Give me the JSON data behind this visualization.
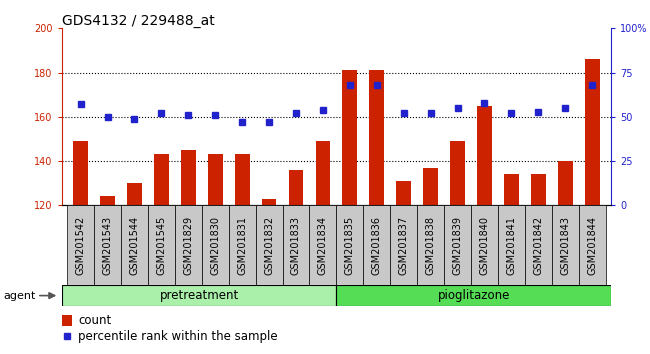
{
  "title": "GDS4132 / 229488_at",
  "samples": [
    "GSM201542",
    "GSM201543",
    "GSM201544",
    "GSM201545",
    "GSM201829",
    "GSM201830",
    "GSM201831",
    "GSM201832",
    "GSM201833",
    "GSM201834",
    "GSM201835",
    "GSM201836",
    "GSM201837",
    "GSM201838",
    "GSM201839",
    "GSM201840",
    "GSM201841",
    "GSM201842",
    "GSM201843",
    "GSM201844"
  ],
  "counts": [
    149,
    124,
    130,
    143,
    145,
    143,
    143,
    123,
    136,
    149,
    181,
    181,
    131,
    137,
    149,
    165,
    134,
    134,
    140,
    186
  ],
  "percentiles": [
    57,
    50,
    49,
    52,
    51,
    51,
    47,
    47,
    52,
    54,
    68,
    68,
    52,
    52,
    55,
    58,
    52,
    53,
    55,
    68
  ],
  "pretreatment_count": 10,
  "pioglitazone_count": 10,
  "ylim_left": [
    120,
    200
  ],
  "ylim_right": [
    0,
    100
  ],
  "yticks_left": [
    120,
    140,
    160,
    180,
    200
  ],
  "yticks_right": [
    0,
    25,
    50,
    75,
    100
  ],
  "bar_color": "#cc2200",
  "dot_color": "#2222cc",
  "pretreatment_color": "#aaf0aa",
  "pioglitazone_color": "#55dd55",
  "agent_label": "agent",
  "pretreatment_label": "pretreatment",
  "pioglitazone_label": "pioglitazone",
  "legend_bar_label": "count",
  "legend_dot_label": "percentile rank within the sample",
  "title_fontsize": 10,
  "tick_fontsize": 7,
  "label_fontsize": 8.5,
  "gridline_ticks": [
    140,
    160,
    180
  ]
}
